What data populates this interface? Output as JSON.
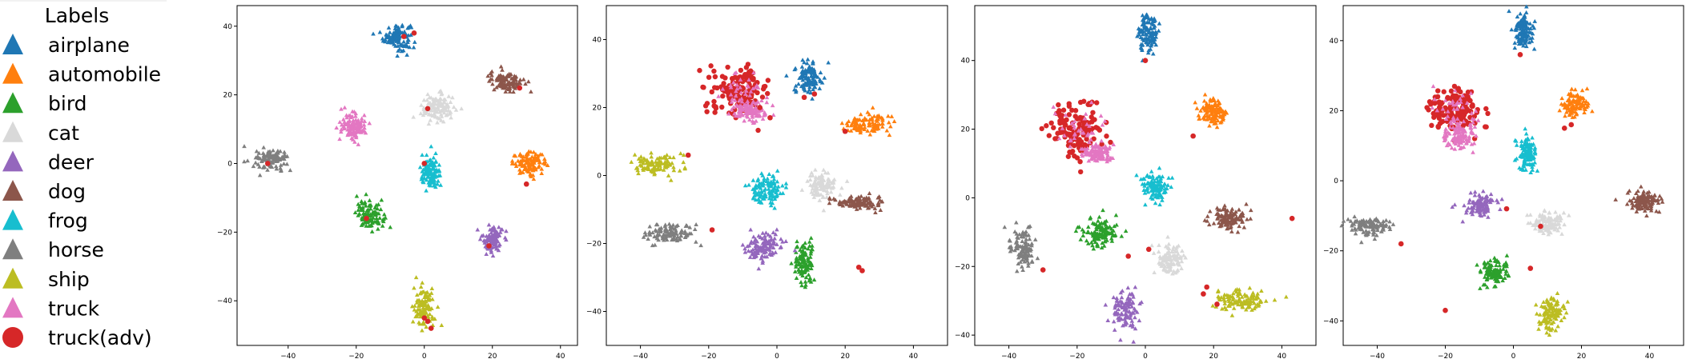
{
  "legend": {
    "title": "Labels",
    "entries": [
      {
        "label": "airplane",
        "marker": "triangle",
        "color": "#1f77b4"
      },
      {
        "label": "automobile",
        "marker": "triangle",
        "color": "#ff7f0e"
      },
      {
        "label": "bird",
        "marker": "triangle",
        "color": "#2ca02c"
      },
      {
        "label": "cat",
        "marker": "triangle",
        "color": "#d9d9d9"
      },
      {
        "label": "deer",
        "marker": "triangle",
        "color": "#9467bd"
      },
      {
        "label": "dog",
        "marker": "triangle",
        "color": "#8c564b"
      },
      {
        "label": "frog",
        "marker": "triangle",
        "color": "#17becf"
      },
      {
        "label": "horse",
        "marker": "triangle",
        "color": "#7f7f7f"
      },
      {
        "label": "ship",
        "marker": "triangle",
        "color": "#bcbd22"
      },
      {
        "label": "truck",
        "marker": "triangle",
        "color": "#e377c2"
      },
      {
        "label": "truck(adv)",
        "marker": "circle",
        "color": "#d62728"
      }
    ]
  },
  "chart_data": [
    {
      "type": "scatter",
      "xlim": [
        -55,
        45
      ],
      "ylim": [
        -53,
        46
      ],
      "xticks": [
        -40,
        -20,
        0,
        20,
        40
      ],
      "yticks": [
        -40,
        -20,
        0,
        20,
        40
      ],
      "clusters": [
        {
          "label": "airplane",
          "cx": -8,
          "cy": 37,
          "rx": 4,
          "ry": 4
        },
        {
          "label": "automobile",
          "cx": 31,
          "cy": 0,
          "rx": 5,
          "ry": 3
        },
        {
          "label": "bird",
          "cx": -16,
          "cy": -15,
          "rx": 4,
          "ry": 4
        },
        {
          "label": "cat",
          "cx": 4,
          "cy": 16,
          "rx": 5,
          "ry": 4
        },
        {
          "label": "deer",
          "cx": 20,
          "cy": -22,
          "rx": 3,
          "ry": 4
        },
        {
          "label": "dog",
          "cx": 24,
          "cy": 24,
          "rx": 5,
          "ry": 3
        },
        {
          "label": "frog",
          "cx": 2,
          "cy": -3,
          "rx": 3,
          "ry": 5
        },
        {
          "label": "horse",
          "cx": -45,
          "cy": 1,
          "rx": 5,
          "ry": 3
        },
        {
          "label": "ship",
          "cx": 0,
          "cy": -42,
          "rx": 3,
          "ry": 6
        },
        {
          "label": "truck",
          "cx": -21,
          "cy": 11,
          "rx": 4,
          "ry": 4
        }
      ],
      "adv_points": [
        [
          -6,
          37
        ],
        [
          -3,
          38
        ],
        [
          1,
          16
        ],
        [
          28,
          22
        ],
        [
          30,
          -6
        ],
        [
          -17,
          -16
        ],
        [
          0,
          0
        ],
        [
          19,
          -24
        ],
        [
          -46,
          0
        ],
        [
          1,
          -46
        ],
        [
          2,
          -48
        ],
        [
          0,
          -45
        ]
      ]
    },
    {
      "type": "scatter",
      "xlim": [
        -50,
        50
      ],
      "ylim": [
        -50,
        50
      ],
      "xticks": [
        -40,
        -20,
        0,
        20,
        40
      ],
      "yticks": [
        -40,
        -20,
        0,
        20,
        40
      ],
      "clusters": [
        {
          "label": "airplane",
          "cx": 9,
          "cy": 29,
          "rx": 4,
          "ry": 5
        },
        {
          "label": "automobile",
          "cx": 26,
          "cy": 15,
          "rx": 7,
          "ry": 3
        },
        {
          "label": "bird",
          "cx": 8,
          "cy": -26,
          "rx": 3,
          "ry": 6
        },
        {
          "label": "cat",
          "cx": 13,
          "cy": -3,
          "rx": 4,
          "ry": 4
        },
        {
          "label": "deer",
          "cx": -4,
          "cy": -21,
          "rx": 5,
          "ry": 4
        },
        {
          "label": "dog",
          "cx": 24,
          "cy": -8,
          "rx": 7,
          "ry": 2
        },
        {
          "label": "frog",
          "cx": -3,
          "cy": -4,
          "rx": 5,
          "ry": 4
        },
        {
          "label": "horse",
          "cx": -31,
          "cy": -17,
          "rx": 7,
          "ry": 3
        },
        {
          "label": "ship",
          "cx": -35,
          "cy": 3,
          "rx": 7,
          "ry": 3
        },
        {
          "label": "truck",
          "cx": -8,
          "cy": 19,
          "rx": 5,
          "ry": 3
        }
      ],
      "red_clusters": [
        {
          "cx": -11,
          "cy": 25,
          "rx": 8,
          "ry": 6
        }
      ],
      "adv_points": [
        [
          8,
          23
        ],
        [
          20,
          13
        ],
        [
          -26,
          6
        ],
        [
          -19,
          -16
        ],
        [
          25,
          -28
        ],
        [
          24,
          -27
        ],
        [
          -2,
          17
        ],
        [
          -5,
          20
        ],
        [
          11,
          24
        ]
      ]
    },
    {
      "type": "scatter",
      "xlim": [
        -50,
        50
      ],
      "ylim": [
        -43,
        56
      ],
      "xticks": [
        -40,
        -20,
        0,
        20,
        40
      ],
      "yticks": [
        -40,
        -20,
        0,
        20,
        40
      ],
      "clusters": [
        {
          "label": "airplane",
          "cx": 1,
          "cy": 48,
          "rx": 3,
          "ry": 6
        },
        {
          "label": "automobile",
          "cx": 20,
          "cy": 25,
          "rx": 4,
          "ry": 4
        },
        {
          "label": "bird",
          "cx": -13,
          "cy": -10,
          "rx": 5,
          "ry": 4
        },
        {
          "label": "cat",
          "cx": 7,
          "cy": -18,
          "rx": 4,
          "ry": 4
        },
        {
          "label": "deer",
          "cx": -6,
          "cy": -33,
          "rx": 4,
          "ry": 6
        },
        {
          "label": "dog",
          "cx": 24,
          "cy": -6,
          "rx": 5,
          "ry": 3
        },
        {
          "label": "frog",
          "cx": 3,
          "cy": 3,
          "rx": 4,
          "ry": 4
        },
        {
          "label": "horse",
          "cx": -36,
          "cy": -15,
          "rx": 4,
          "ry": 6
        },
        {
          "label": "ship",
          "cx": 28,
          "cy": -30,
          "rx": 8,
          "ry": 3
        },
        {
          "label": "truck",
          "cx": -14,
          "cy": 13,
          "rx": 4,
          "ry": 3
        }
      ],
      "red_clusters": [
        {
          "cx": -20,
          "cy": 20,
          "rx": 7,
          "ry": 7
        }
      ],
      "adv_points": [
        [
          0,
          40
        ],
        [
          14,
          18
        ],
        [
          -30,
          -21
        ],
        [
          -5,
          -17
        ],
        [
          1,
          -15
        ],
        [
          17,
          -28
        ],
        [
          18,
          -26
        ],
        [
          21,
          -31
        ],
        [
          43,
          -6
        ]
      ]
    },
    {
      "type": "scatter",
      "xlim": [
        -50,
        50
      ],
      "ylim": [
        -47,
        50
      ],
      "xticks": [
        -40,
        -20,
        0,
        20,
        40
      ],
      "yticks": [
        -40,
        -20,
        0,
        20,
        40
      ],
      "clusters": [
        {
          "label": "airplane",
          "cx": 3,
          "cy": 43,
          "rx": 3,
          "ry": 5
        },
        {
          "label": "automobile",
          "cx": 18,
          "cy": 22,
          "rx": 4,
          "ry": 4
        },
        {
          "label": "bird",
          "cx": -6,
          "cy": -26,
          "rx": 4,
          "ry": 4
        },
        {
          "label": "cat",
          "cx": 10,
          "cy": -12,
          "rx": 5,
          "ry": 3
        },
        {
          "label": "deer",
          "cx": -10,
          "cy": -7,
          "rx": 5,
          "ry": 3
        },
        {
          "label": "dog",
          "cx": 38,
          "cy": -6,
          "rx": 5,
          "ry": 3
        },
        {
          "label": "frog",
          "cx": 4,
          "cy": 8,
          "rx": 3,
          "ry": 5
        },
        {
          "label": "horse",
          "cx": -42,
          "cy": -13,
          "rx": 6,
          "ry": 3
        },
        {
          "label": "ship",
          "cx": 11,
          "cy": -38,
          "rx": 4,
          "ry": 5
        },
        {
          "label": "truck",
          "cx": -16,
          "cy": 13,
          "rx": 5,
          "ry": 4
        }
      ],
      "red_clusters": [
        {
          "cx": -17,
          "cy": 20,
          "rx": 7,
          "ry": 6
        }
      ],
      "adv_points": [
        [
          2,
          36
        ],
        [
          15,
          15
        ],
        [
          17,
          16
        ],
        [
          -33,
          -18
        ],
        [
          -20,
          -37
        ],
        [
          8,
          -13
        ],
        [
          -2,
          -8
        ],
        [
          5,
          -25
        ]
      ]
    }
  ]
}
